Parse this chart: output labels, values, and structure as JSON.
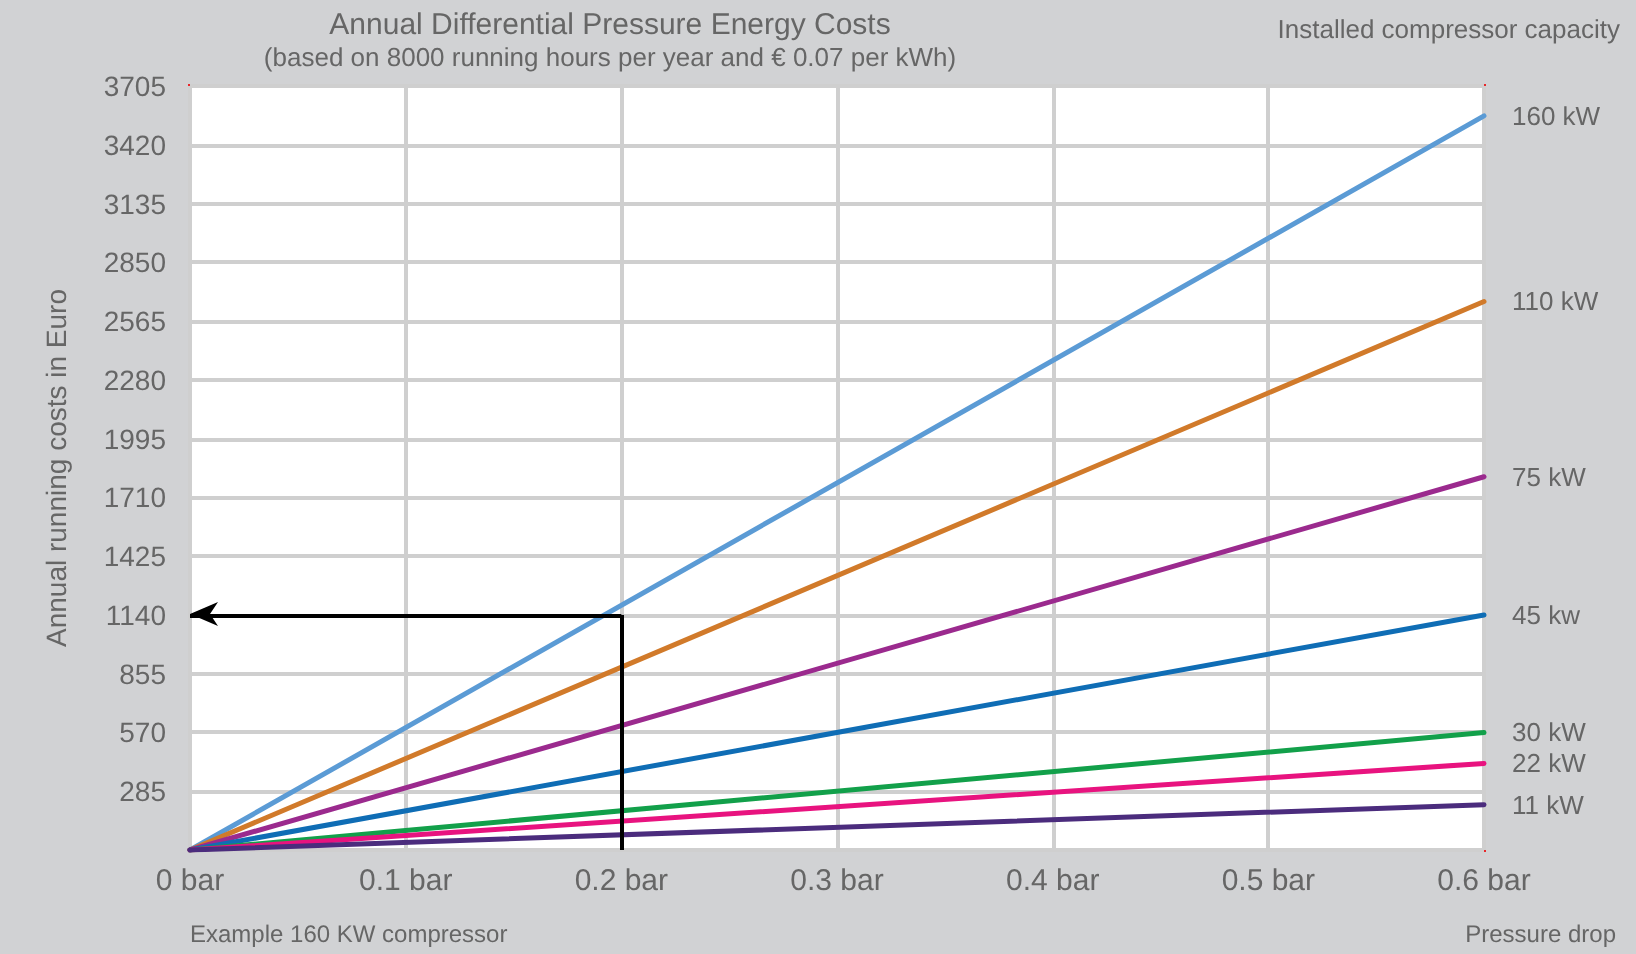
{
  "chart_data": {
    "type": "line",
    "title": "Annual Differential Pressure Energy Costs",
    "subtitle": "(based on 8000 running hours per year and € 0.07 per kWh)",
    "ylabel": "Annual running costs in Euro",
    "xlabel": "Pressure drop",
    "legend_title": "Installed compressor capacity",
    "x": [
      0,
      0.6
    ],
    "series": [
      {
        "name": "160 kW",
        "color": "#5b9bd5",
        "values": [
          0,
          3560
        ]
      },
      {
        "name": "110 kW",
        "color": "#d17a2a",
        "values": [
          0,
          2660
        ]
      },
      {
        "name": "75 kW",
        "color": "#9b2a8e",
        "values": [
          0,
          1810
        ]
      },
      {
        "name": "45 kw",
        "color": "#0f6db5",
        "values": [
          0,
          1140
        ]
      },
      {
        "name": "30 kW",
        "color": "#12a04a",
        "values": [
          0,
          570
        ]
      },
      {
        "name": "22 kW",
        "color": "#e8137f",
        "values": [
          0,
          420
        ]
      },
      {
        "name": "11 kW",
        "color": "#4b2c7d",
        "values": [
          0,
          220
        ]
      }
    ],
    "xlim": [
      0,
      0.6
    ],
    "xticks": [
      {
        "value": 0,
        "label": "0 bar"
      },
      {
        "value": 0.1,
        "label": "0.1 bar"
      },
      {
        "value": 0.2,
        "label": "0.2 bar"
      },
      {
        "value": 0.3,
        "label": "0.3 bar"
      },
      {
        "value": 0.4,
        "label": "0.4 bar"
      },
      {
        "value": 0.5,
        "label": "0.5 bar"
      },
      {
        "value": 0.6,
        "label": "0.6 bar"
      }
    ],
    "ylim": [
      0,
      3705
    ],
    "yticks": [
      {
        "value": 0,
        "label": null
      },
      285,
      570,
      855,
      1140,
      1425,
      1710,
      1995,
      2280,
      2565,
      2850,
      3135,
      3420,
      3705
    ],
    "grid": true,
    "marker": "none",
    "line_style": "solid",
    "ref_lines": [
      {
        "axis": "x",
        "value": 0.2,
        "color": "#000000"
      },
      {
        "axis": "y",
        "value": 1140,
        "color": "#000000"
      }
    ],
    "annotations": [
      "Example 160 KW compressor"
    ]
  }
}
